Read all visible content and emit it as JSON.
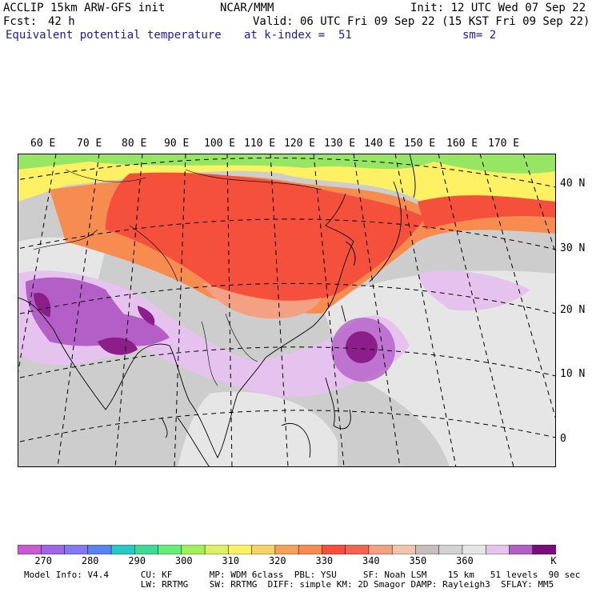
{
  "header": {
    "model": "ACCLIP 15km ARW-GFS init",
    "org": "NCAR/MMM",
    "init": "Init: 12 UTC Wed 07 Sep 22",
    "fcst_label": "Fcst:",
    "fcst_value": "42 h",
    "valid": "Valid: 06 UTC Fri 09 Sep 22 (15 KST Fri 09 Sep 22)",
    "field": "Equivalent potential temperature",
    "level": "at k-index =  51",
    "smooth": "sm= 2"
  },
  "map": {
    "lon_labels": [
      "60 E",
      "70 E",
      "80 E",
      "90 E",
      "100 E",
      "110 E",
      "120 E",
      "130 E",
      "140 E",
      "150 E",
      "160 E",
      "170 E"
    ],
    "lat_labels": [
      "40 N",
      "30 N",
      "20 N",
      "10 N",
      "0"
    ],
    "colors": {
      "ocean_gray": "#cdcdcd",
      "light_gray": "#e6e6e6",
      "red": "#f4503c",
      "orange": "#f78c50",
      "yellow": "#fff064",
      "green": "#96e664",
      "lilac": "#e6c3ee",
      "violet": "#b45fc8",
      "dark_violet": "#8c1e8c"
    }
  },
  "colorbar": {
    "colors": [
      "#c85ad2",
      "#a064e6",
      "#8278f0",
      "#5a82f0",
      "#28c8c8",
      "#3cdc96",
      "#64f078",
      "#a0f05a",
      "#dcf064",
      "#fff064",
      "#f5d264",
      "#f7a05a",
      "#f78c50",
      "#f4503c",
      "#f46450",
      "#f4a082",
      "#f0c3aa",
      "#c8bebe",
      "#d2d2d2",
      "#e6e6e6",
      "#e6c3ee",
      "#b45fc8",
      "#7c0e7c"
    ],
    "ticks": [
      "270",
      "280",
      "290",
      "300",
      "310",
      "320",
      "330",
      "340",
      "350",
      "360"
    ],
    "unit": "K"
  },
  "footer": {
    "line1": "Model Info: V4.4      CU: KF       MP: WDM 6class  PBL: YSU     SF: Noah LSM    15 km   51 levels  90 sec",
    "line2": "                      LW: RRTMG    SW: RRTMG  DIFF: simple KM: 2D Smagor DAMP: Rayleigh3  SFLAY: MM5"
  }
}
